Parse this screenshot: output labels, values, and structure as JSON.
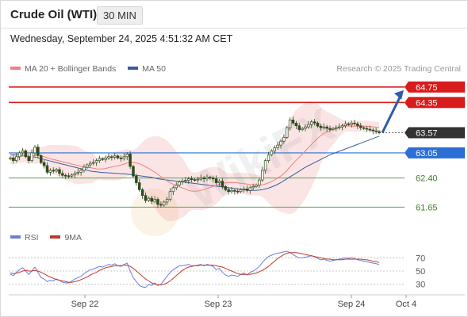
{
  "header": {
    "instrument": "Crude Oil (WTI)",
    "timeframe": "30 MIN",
    "datetime": "Wednesday, September 24, 2025 4:51:32 AM CET"
  },
  "legend": {
    "ma20_label": "MA 20 + Bollinger Bands",
    "ma50_label": "MA 50",
    "credit": "Research © 2025 Trading Central"
  },
  "rsi_legend": {
    "rsi_label": "RSI",
    "ma9_label": "9MA"
  },
  "colors": {
    "ma20": "#f08080",
    "ma50": "#3b5e9e",
    "bollinger_fill": "#fbe1e1",
    "resistance": "#d81b1b",
    "support": "#5aa05a",
    "pivot": "#2b6fd6",
    "current": "#333333",
    "arrow": "#2f5da8",
    "candle_up": "#ffffff",
    "candle_down": "#2e4a1e",
    "rsi": "#6b7fd7",
    "rsi_ma9": "#c0392b"
  },
  "chart_data": [
    {
      "type": "candlestick",
      "title": "Crude Oil (WTI)",
      "ylim": [
        61.35,
        64.95
      ],
      "x_ticks": [
        "Sep 22",
        "Sep 23",
        "Sep 24",
        "Oct 4"
      ],
      "levels": [
        {
          "value": 64.75,
          "label": "64.75",
          "kind": "resistance",
          "style": "badge"
        },
        {
          "value": 64.35,
          "label": "64.35",
          "kind": "resistance",
          "style": "badge"
        },
        {
          "value": 63.57,
          "label": "63.57",
          "kind": "current",
          "style": "badge"
        },
        {
          "value": 63.05,
          "label": "63.05",
          "kind": "pivot",
          "style": "badge"
        },
        {
          "value": 62.4,
          "label": "62.40",
          "kind": "support",
          "style": "text"
        },
        {
          "value": 61.65,
          "label": "61.65",
          "kind": "support",
          "style": "text"
        }
      ],
      "close_series": [
        62.92,
        62.85,
        62.95,
        63.05,
        63.1,
        62.95,
        62.85,
        63.05,
        63.2,
        62.98,
        62.8,
        62.72,
        62.55,
        62.6,
        62.58,
        62.62,
        62.52,
        62.47,
        62.46,
        62.45,
        62.48,
        62.52,
        62.55,
        62.6,
        62.68,
        62.74,
        62.78,
        62.8,
        62.85,
        62.9,
        62.88,
        62.92,
        62.95,
        62.94,
        62.97,
        62.92,
        62.9,
        62.95,
        63.02,
        62.7,
        62.45,
        62.28,
        62.1,
        61.95,
        61.82,
        61.88,
        61.8,
        61.85,
        61.72,
        61.7,
        61.78,
        61.85,
        62.05,
        62.15,
        62.22,
        62.3,
        62.32,
        62.34,
        62.38,
        62.36,
        62.35,
        62.37,
        62.4,
        62.38,
        62.42,
        62.4,
        62.38,
        62.28,
        62.32,
        62.18,
        62.1,
        62.05,
        62.08,
        62.06,
        62.05,
        62.1,
        62.12,
        62.08,
        62.15,
        62.18,
        62.22,
        62.35,
        62.6,
        62.85,
        63.0,
        63.1,
        63.18,
        63.25,
        63.35,
        63.45,
        63.7,
        63.9,
        63.82,
        63.75,
        63.65,
        63.68,
        63.72,
        63.78,
        63.85,
        63.82,
        63.74,
        63.7,
        63.72,
        63.68,
        63.65,
        63.68,
        63.7,
        63.72,
        63.75,
        63.8,
        63.78,
        63.82,
        63.8,
        63.75,
        63.7,
        63.68,
        63.66,
        63.64,
        63.62,
        63.6,
        63.57
      ],
      "ma50_series": [
        63.0,
        63.0,
        63.0,
        62.99,
        62.98,
        62.97,
        62.96,
        62.95,
        62.94,
        62.92,
        62.9,
        62.88,
        62.86,
        62.84,
        62.82,
        62.8,
        62.78,
        62.76,
        62.74,
        62.72,
        62.7,
        62.68,
        62.66,
        62.64,
        62.62,
        62.6,
        62.58,
        62.57,
        62.56,
        62.55,
        62.54,
        62.54,
        62.53,
        62.53,
        62.52,
        62.52,
        62.51,
        62.51,
        62.5,
        62.49,
        62.48,
        62.47,
        62.46,
        62.45,
        62.44,
        62.43,
        62.42,
        62.4,
        62.38,
        62.37,
        62.36,
        62.35,
        62.34,
        62.33,
        62.32,
        62.31,
        62.3,
        62.29,
        62.28,
        62.27,
        62.26,
        62.25,
        62.24,
        62.23,
        62.22,
        62.21,
        62.2,
        62.19,
        62.18,
        62.17,
        62.16,
        62.15,
        62.14,
        62.13,
        62.12,
        62.11,
        62.1,
        62.09,
        62.08,
        62.08,
        62.08,
        62.09,
        62.1,
        62.12,
        62.14,
        62.17,
        62.2,
        62.24,
        62.28,
        62.33,
        62.38,
        62.43,
        62.48,
        62.53,
        62.58,
        62.63,
        62.68,
        62.72,
        62.76,
        62.8,
        62.84,
        62.88,
        62.92,
        62.96,
        63.0,
        63.03,
        63.06,
        63.09,
        63.12,
        63.15,
        63.18,
        63.21,
        63.24,
        63.27,
        63.3,
        63.33,
        63.36,
        63.39,
        63.42,
        63.45,
        63.48
      ],
      "forecast": {
        "from": 63.57,
        "to": 64.75
      }
    },
    {
      "type": "line",
      "title": "RSI",
      "ylim": [
        20,
        80
      ],
      "y_ticks": [
        30,
        50,
        70
      ],
      "series": [
        {
          "name": "RSI",
          "values": [
            45,
            43,
            48,
            52,
            55,
            50,
            45,
            50,
            56,
            48,
            40,
            38,
            34,
            36,
            35,
            38,
            36,
            33,
            32,
            32,
            35,
            38,
            40,
            42,
            46,
            49,
            52,
            53,
            55,
            57,
            56,
            58,
            60,
            59,
            61,
            58,
            57,
            60,
            62,
            50,
            40,
            34,
            28,
            26,
            25,
            30,
            28,
            32,
            28,
            30,
            36,
            42,
            48,
            52,
            55,
            58,
            58,
            59,
            60,
            58,
            58,
            59,
            60,
            58,
            60,
            59,
            57,
            52,
            54,
            48,
            44,
            42,
            44,
            43,
            42,
            45,
            47,
            44,
            48,
            50,
            53,
            57,
            63,
            68,
            72,
            74,
            76,
            77,
            78,
            79,
            80,
            78,
            75,
            72,
            70,
            70,
            71,
            72,
            73,
            72,
            69,
            67,
            68,
            66,
            65,
            66,
            67,
            68,
            69,
            70,
            69,
            70,
            69,
            67,
            66,
            65,
            64,
            63,
            62,
            61,
            60
          ]
        },
        {
          "name": "9MA",
          "values": [
            47,
            46,
            47,
            48,
            50,
            51,
            50,
            50,
            51,
            50,
            48,
            46,
            43,
            41,
            39,
            37,
            36,
            35,
            34,
            33,
            33,
            34,
            35,
            37,
            39,
            41,
            44,
            46,
            48,
            51,
            53,
            55,
            56,
            57,
            58,
            58,
            58,
            59,
            59,
            57,
            54,
            50,
            46,
            42,
            38,
            35,
            32,
            30,
            29,
            29,
            30,
            32,
            35,
            39,
            43,
            47,
            51,
            54,
            56,
            57,
            58,
            58,
            59,
            59,
            59,
            59,
            59,
            58,
            57,
            56,
            54,
            52,
            50,
            48,
            46,
            45,
            45,
            45,
            45,
            46,
            47,
            49,
            51,
            54,
            57,
            61,
            65,
            69,
            72,
            75,
            77,
            78,
            78,
            78,
            77,
            76,
            75,
            74,
            73,
            72,
            71,
            70,
            69,
            68,
            68,
            67,
            67,
            67,
            67,
            68,
            68,
            68,
            68,
            68,
            68,
            67,
            67,
            66,
            65,
            64,
            63
          ]
        }
      ]
    }
  ]
}
